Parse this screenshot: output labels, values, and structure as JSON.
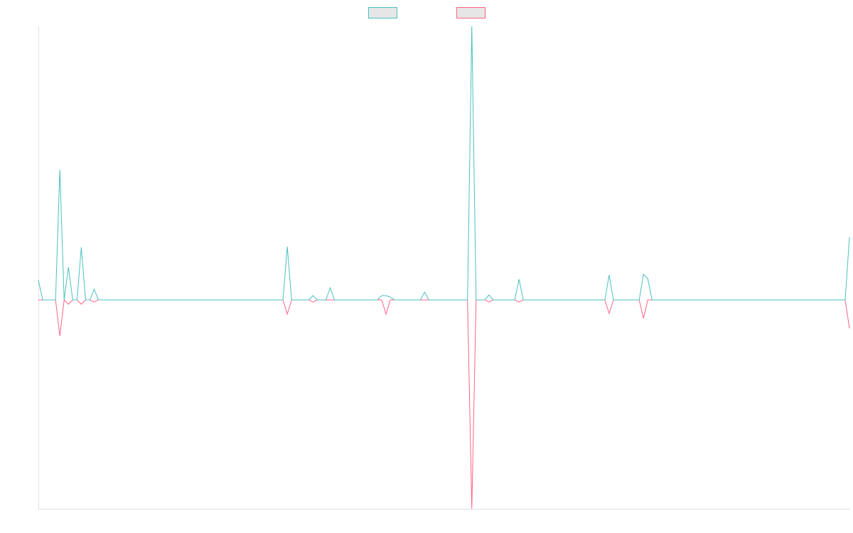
{
  "chart_data": {
    "type": "line",
    "ylim": [
      -294,
      385
    ],
    "series": [
      {
        "color": "#4bc0c0",
        "values": [
          28,
          0,
          0,
          0,
          0,
          183,
          0,
          46,
          0,
          0,
          74,
          0,
          0,
          15,
          0,
          0,
          0,
          0,
          0,
          0,
          0,
          0,
          0,
          0,
          0,
          0,
          0,
          0,
          0,
          0,
          0,
          0,
          0,
          0,
          0,
          0,
          0,
          0,
          0,
          0,
          0,
          0,
          0,
          0,
          0,
          0,
          0,
          0,
          0,
          0,
          0,
          0,
          0,
          0,
          0,
          0,
          0,
          0,
          75,
          0,
          0,
          0,
          0,
          0,
          6,
          0,
          0,
          0,
          17,
          0,
          0,
          0,
          0,
          0,
          0,
          0,
          0,
          0,
          0,
          0,
          6,
          6,
          4,
          0,
          0,
          0,
          0,
          0,
          0,
          0,
          11,
          0,
          0,
          0,
          0,
          0,
          0,
          0,
          0,
          0,
          0,
          385,
          0,
          0,
          0,
          7,
          0,
          0,
          0,
          0,
          0,
          0,
          29,
          0,
          0,
          0,
          0,
          0,
          0,
          0,
          0,
          0,
          0,
          0,
          0,
          0,
          0,
          0,
          0,
          0,
          0,
          0,
          0,
          35,
          0,
          0,
          0,
          0,
          0,
          0,
          0,
          36,
          30,
          0,
          0,
          0,
          0,
          0,
          0,
          0,
          0,
          0,
          0,
          0,
          0,
          0,
          0,
          0,
          0,
          0,
          0,
          0,
          0,
          0,
          0,
          0,
          0,
          0,
          0,
          0,
          0,
          0,
          0,
          0,
          0,
          0,
          0,
          0,
          0,
          0,
          0,
          0,
          0,
          0,
          0,
          0,
          0,
          0,
          0,
          88
        ]
      },
      {
        "color": "#ff6384",
        "values": [
          0,
          0,
          0,
          0,
          0,
          -51,
          0,
          -6,
          0,
          0,
          -6,
          0,
          0,
          -3,
          0,
          0,
          0,
          0,
          0,
          0,
          0,
          0,
          0,
          0,
          0,
          0,
          0,
          0,
          0,
          0,
          0,
          0,
          0,
          0,
          0,
          0,
          0,
          0,
          0,
          0,
          0,
          0,
          0,
          0,
          0,
          0,
          0,
          0,
          0,
          0,
          0,
          0,
          0,
          0,
          0,
          0,
          0,
          0,
          -20,
          0,
          0,
          0,
          0,
          0,
          -3,
          0,
          0,
          0,
          0,
          0,
          0,
          0,
          0,
          0,
          0,
          0,
          0,
          0,
          0,
          0,
          0,
          -20,
          0,
          0,
          0,
          0,
          0,
          0,
          0,
          0,
          0,
          0,
          0,
          0,
          0,
          0,
          0,
          0,
          0,
          0,
          0,
          -294,
          0,
          0,
          0,
          -3,
          0,
          0,
          0,
          0,
          0,
          0,
          -3,
          0,
          0,
          0,
          0,
          0,
          0,
          0,
          0,
          0,
          0,
          0,
          0,
          0,
          0,
          0,
          0,
          0,
          0,
          0,
          0,
          -19,
          0,
          0,
          0,
          0,
          0,
          0,
          0,
          -26,
          0,
          0,
          0,
          0,
          0,
          0,
          0,
          0,
          0,
          0,
          0,
          0,
          0,
          0,
          0,
          0,
          0,
          0,
          0,
          0,
          0,
          0,
          0,
          0,
          0,
          0,
          0,
          0,
          0,
          0,
          0,
          0,
          0,
          0,
          0,
          0,
          0,
          0,
          0,
          0,
          0,
          0,
          0,
          0,
          0,
          0,
          0,
          -40
        ]
      }
    ]
  }
}
